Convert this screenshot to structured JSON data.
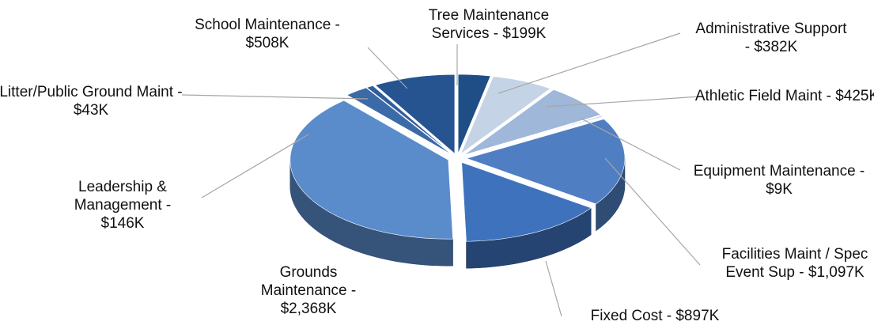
{
  "chart_data": {
    "type": "pie",
    "labels": [
      "Tree Maintenance Services - $199K",
      "Administrative Support - $382K",
      "Athletic Field Maint - $425K",
      "Equipment Maintenance - $9K",
      "Facilities Maint / Spec Event Sup - $1,097K",
      "Fixed Cost - $897K",
      "Grounds Maintenance - $2,368K",
      "Leadership & Management - $146K",
      "Litter/Public Ground Maint - $43K",
      "School Maintenance - $508K"
    ],
    "values": [
      199,
      382,
      425,
      9,
      1097,
      897,
      2368,
      146,
      43,
      508
    ],
    "colors": [
      "#1f4e86",
      "#c5d3e6",
      "#9fb7d8",
      "#5279b4",
      "#4f7fc2",
      "#3f72bd",
      "#5a8ccc",
      "#3a6aa8",
      "#2f5e9a",
      "#255491"
    ]
  }
}
